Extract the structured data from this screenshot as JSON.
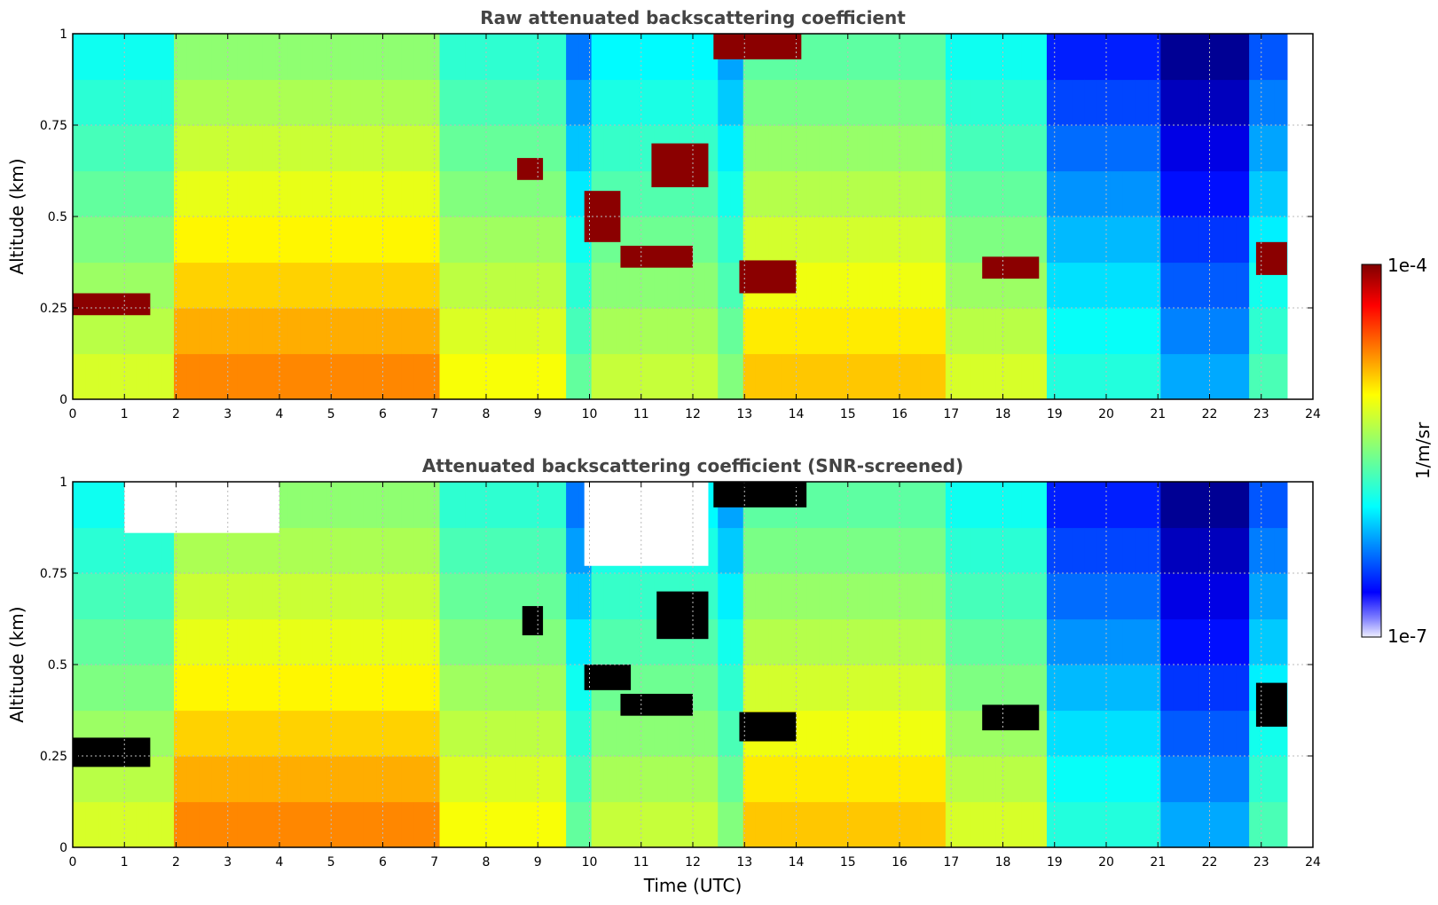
{
  "chart_data": [
    {
      "type": "heatmap",
      "title": "Raw attenuated backscattering coefficient",
      "xlabel": "",
      "ylabel": "Altitude (km)",
      "xlim": [
        0,
        24
      ],
      "ylim": [
        0,
        1
      ],
      "x_ticks": [
        "0",
        "1",
        "2",
        "3",
        "4",
        "5",
        "6",
        "7",
        "8",
        "9",
        "10",
        "11",
        "12",
        "13",
        "14",
        "15",
        "16",
        "17",
        "18",
        "19",
        "20",
        "21",
        "22",
        "23",
        "24"
      ],
      "y_ticks": [
        "0",
        "0.25",
        "0.5",
        "0.75",
        "1"
      ],
      "grid": true,
      "data_end_time": 23.5,
      "features": [
        {
          "type": "cloud",
          "t0": 0.0,
          "t1": 1.5,
          "z0": 0.23,
          "z1": 0.29
        },
        {
          "type": "cloud",
          "t0": 8.6,
          "t1": 9.1,
          "z0": 0.6,
          "z1": 0.66
        },
        {
          "type": "cloud",
          "t0": 9.9,
          "t1": 10.6,
          "z0": 0.43,
          "z1": 0.57
        },
        {
          "type": "cloud",
          "t0": 10.6,
          "t1": 12.0,
          "z0": 0.36,
          "z1": 0.42
        },
        {
          "type": "cloud",
          "t0": 11.2,
          "t1": 12.3,
          "z0": 0.58,
          "z1": 0.7
        },
        {
          "type": "cloud",
          "t0": 12.4,
          "t1": 14.1,
          "z0": 0.93,
          "z1": 1.0
        },
        {
          "type": "cloud",
          "t0": 12.9,
          "t1": 14.0,
          "z0": 0.29,
          "z1": 0.38
        },
        {
          "type": "cloud",
          "t0": 17.6,
          "t1": 18.7,
          "z0": 0.33,
          "z1": 0.39
        },
        {
          "type": "cloud",
          "t0": 22.9,
          "t1": 23.5,
          "z0": 0.34,
          "z1": 0.43
        }
      ]
    },
    {
      "type": "heatmap",
      "title": "Attenuated backscattering coefficient (SNR-screened)",
      "xlabel": "Time (UTC)",
      "ylabel": "Altitude (km)",
      "xlim": [
        0,
        24
      ],
      "ylim": [
        0,
        1
      ],
      "x_ticks": [
        "0",
        "1",
        "2",
        "3",
        "4",
        "5",
        "6",
        "7",
        "8",
        "9",
        "10",
        "11",
        "12",
        "13",
        "14",
        "15",
        "16",
        "17",
        "18",
        "19",
        "20",
        "21",
        "22",
        "23",
        "24"
      ],
      "y_ticks": [
        "0",
        "0.25",
        "0.5",
        "0.75",
        "1"
      ],
      "grid": true,
      "data_end_time": 23.5,
      "screened_fill": "#000000",
      "features": [
        {
          "type": "saturated",
          "t0": 0.0,
          "t1": 1.5,
          "z0": 0.22,
          "z1": 0.3
        },
        {
          "type": "saturated",
          "t0": 8.7,
          "t1": 9.1,
          "z0": 0.58,
          "z1": 0.66
        },
        {
          "type": "saturated",
          "t0": 9.9,
          "t1": 10.8,
          "z0": 0.43,
          "z1": 0.5
        },
        {
          "type": "saturated",
          "t0": 10.6,
          "t1": 12.0,
          "z0": 0.36,
          "z1": 0.42
        },
        {
          "type": "saturated",
          "t0": 11.3,
          "t1": 12.3,
          "z0": 0.57,
          "z1": 0.7
        },
        {
          "type": "saturated",
          "t0": 12.4,
          "t1": 14.2,
          "z0": 0.93,
          "z1": 1.0
        },
        {
          "type": "saturated",
          "t0": 12.9,
          "t1": 14.0,
          "z0": 0.29,
          "z1": 0.37
        },
        {
          "type": "saturated",
          "t0": 17.6,
          "t1": 18.7,
          "z0": 0.32,
          "z1": 0.39
        },
        {
          "type": "saturated",
          "t0": 22.9,
          "t1": 23.5,
          "z0": 0.33,
          "z1": 0.45
        },
        {
          "type": "noise-mask",
          "t0": 1.0,
          "t1": 4.0,
          "z0": 0.86,
          "z1": 1.0
        },
        {
          "type": "noise-mask",
          "t0": 9.9,
          "t1": 12.3,
          "z0": 0.77,
          "z1": 1.0
        }
      ]
    }
  ],
  "colorbar": {
    "label": "1/m/sr",
    "max_label": "1e-4",
    "min_label": "1e-7",
    "scale": "log",
    "range": [
      1e-07,
      0.0001
    ],
    "colormap": "jet"
  }
}
